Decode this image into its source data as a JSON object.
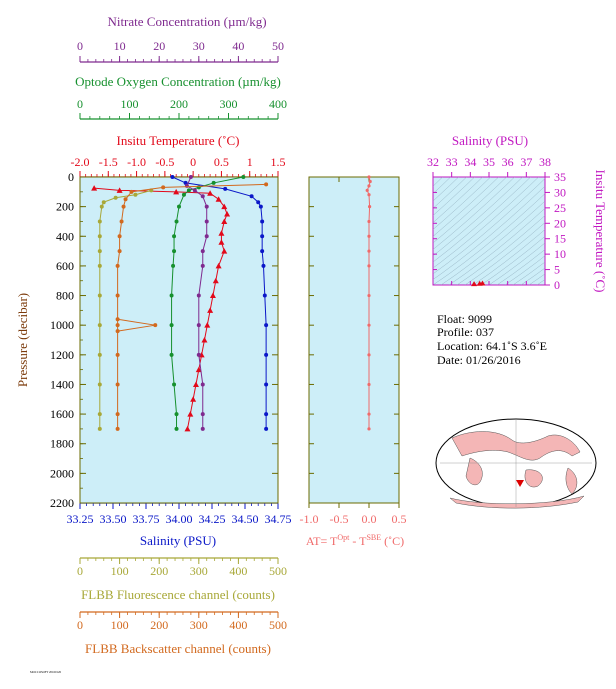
{
  "colors": {
    "nitrate": "#7f2a8f",
    "oxygen": "#16902e",
    "temperature": "#e2091a",
    "salinity": "#0a17c8",
    "fluorescence": "#a8a838",
    "backscatter": "#d2691e",
    "delta_t": "#f06a6a",
    "ts_axis": "#c117c1",
    "plot_bg": "#cdeef8",
    "plot_border": "#6b6b00"
  },
  "text": {
    "nitrate_label": "Nitrate Concentration (µm/kg)",
    "oxygen_label": "Optode Oxygen Concentration (µm/kg)",
    "temp_label": "Insitu Temperature (˚C)",
    "pressure_label": "Pressure (decibar)",
    "salinity_label": "Salinity (PSU)",
    "fluor_label": "FLBB Fluorescence channel (counts)",
    "back_label": "FLBB Backscatter channel (counts)",
    "dt_label_main": "AT= T",
    "dt_label_sup1": "Opt",
    "dt_label_mid": " - T",
    "dt_label_sup2": "SBE",
    "dt_label_end": " (˚C)",
    "ts_top_label": "Salinity (PSU)",
    "ts_right_label": "Insitu Temperature (˚C)",
    "info_float": "Float:  9099",
    "info_profile": "Profile:  037",
    "info_location": "Location:  64.1˚S   3.6˚E",
    "info_date": "Date:  01/26/2016",
    "footer_tiny": "MOCCOSOFT 20160126"
  },
  "chart_data": [
    {
      "type": "line",
      "name": "profile-plot",
      "ylabel": "Pressure (decibar)",
      "y_reversed": true,
      "ylim": [
        0,
        2200
      ],
      "yticks": [
        0,
        200,
        400,
        600,
        800,
        1000,
        1200,
        1400,
        1600,
        1800,
        2000,
        2200
      ],
      "axes": {
        "nitrate": {
          "label": "Nitrate Concentration (µm/kg)",
          "lim": [
            0,
            50
          ],
          "ticks": [
            0,
            10,
            20,
            30,
            40,
            50
          ]
        },
        "oxygen": {
          "label": "Optode Oxygen Concentration (µm/kg)",
          "lim": [
            0,
            400
          ],
          "ticks": [
            0,
            100,
            200,
            300,
            400
          ]
        },
        "temperature": {
          "label": "Insitu Temperature (˚C)",
          "lim": [
            -2.0,
            1.5
          ],
          "ticks": [
            "-2.0",
            "-1.5",
            "-1.0",
            "-0.5",
            "0",
            "0.5",
            "1",
            "1.5"
          ]
        },
        "salinity": {
          "label": "Salinity (PSU)",
          "lim": [
            33.25,
            34.75
          ],
          "ticks": [
            "33.25",
            "33.50",
            "33.75",
            "34.00",
            "34.25",
            "34.50",
            "34.75"
          ]
        },
        "fluorescence": {
          "label": "FLBB Fluorescence channel (counts)",
          "lim": [
            0,
            500
          ],
          "ticks": [
            0,
            100,
            200,
            300,
            400,
            500
          ]
        },
        "backscatter": {
          "label": "FLBB Backscatter channel (counts)",
          "lim": [
            0,
            500
          ],
          "ticks": [
            0,
            100,
            200,
            300,
            400,
            500
          ]
        }
      },
      "series": [
        {
          "key": "temperature",
          "marker": "triangle",
          "points": [
            [
              -1.75,
              75
            ],
            [
              -1.3,
              90
            ],
            [
              -0.3,
              100
            ],
            [
              0.3,
              110
            ],
            [
              0.45,
              150
            ],
            [
              0.55,
              200
            ],
            [
              0.6,
              250
            ],
            [
              0.55,
              300
            ],
            [
              0.5,
              380
            ],
            [
              0.5,
              440
            ],
            [
              0.55,
              500
            ],
            [
              0.45,
              600
            ],
            [
              0.4,
              700
            ],
            [
              0.35,
              800
            ],
            [
              0.3,
              900
            ],
            [
              0.25,
              1000
            ],
            [
              0.2,
              1100
            ],
            [
              0.15,
              1200
            ],
            [
              0.1,
              1300
            ],
            [
              0.05,
              1400
            ],
            [
              0.0,
              1500
            ],
            [
              -0.05,
              1600
            ],
            [
              -0.1,
              1700
            ]
          ]
        },
        {
          "key": "salinity",
          "marker": "circle",
          "points": [
            [
              33.95,
              0
            ],
            [
              34.05,
              40
            ],
            [
              34.35,
              80
            ],
            [
              34.55,
              130
            ],
            [
              34.6,
              170
            ],
            [
              34.62,
              200
            ],
            [
              34.63,
              300
            ],
            [
              34.63,
              400
            ],
            [
              34.63,
              500
            ],
            [
              34.64,
              600
            ],
            [
              34.65,
              800
            ],
            [
              34.66,
              1000
            ],
            [
              34.66,
              1200
            ],
            [
              34.66,
              1400
            ],
            [
              34.66,
              1600
            ],
            [
              34.66,
              1700
            ]
          ]
        },
        {
          "key": "oxygen",
          "marker": "circle",
          "points": [
            [
              330,
              0
            ],
            [
              270,
              40
            ],
            [
              240,
              70
            ],
            [
              220,
              90
            ],
            [
              210,
              120
            ],
            [
              200,
              200
            ],
            [
              195,
              300
            ],
            [
              190,
              400
            ],
            [
              190,
              500
            ],
            [
              188,
              600
            ],
            [
              185,
              800
            ],
            [
              185,
              1000
            ],
            [
              185,
              1200
            ],
            [
              190,
              1400
            ],
            [
              195,
              1600
            ],
            [
              195,
              1700
            ]
          ]
        },
        {
          "key": "nitrate",
          "marker": "circle",
          "points": [
            [
              28,
              0
            ],
            [
              27,
              60
            ],
            [
              29,
              90
            ],
            [
              31,
              130
            ],
            [
              32,
              200
            ],
            [
              32,
              300
            ],
            [
              32,
              400
            ],
            [
              31,
              500
            ],
            [
              31,
              600
            ],
            [
              30,
              800
            ],
            [
              30,
              1000
            ],
            [
              30,
              1200
            ],
            [
              31,
              1400
            ],
            [
              31,
              1600
            ],
            [
              31,
              1700
            ]
          ]
        },
        {
          "key": "fluorescence",
          "marker": "circle",
          "points": [
            [
              180,
              90
            ],
            [
              140,
              120
            ],
            [
              90,
              140
            ],
            [
              60,
              170
            ],
            [
              55,
              200
            ],
            [
              50,
              300
            ],
            [
              50,
              400
            ],
            [
              50,
              500
            ],
            [
              50,
              600
            ],
            [
              50,
              800
            ],
            [
              50,
              1000
            ],
            [
              50,
              1200
            ],
            [
              50,
              1400
            ],
            [
              50,
              1600
            ],
            [
              50,
              1700
            ]
          ]
        },
        {
          "key": "backscatter",
          "marker": "circle",
          "points": [
            [
              470,
              50
            ],
            [
              210,
              70
            ],
            [
              130,
              100
            ],
            [
              115,
              150
            ],
            [
              110,
              200
            ],
            [
              105,
              300
            ],
            [
              100,
              400
            ],
            [
              100,
              500
            ],
            [
              95,
              600
            ],
            [
              95,
              800
            ],
            [
              95,
              1000
            ],
            [
              95,
              1200
            ],
            [
              95,
              1400
            ],
            [
              95,
              1600
            ],
            [
              95,
              1700
            ]
          ]
        },
        {
          "key": "backscatter",
          "marker": "circle",
          "points": [
            [
              95,
              960
            ],
            [
              190,
              1000
            ],
            [
              95,
              1040
            ]
          ]
        }
      ]
    },
    {
      "type": "line",
      "name": "delta-t-plot",
      "xlabel": "AT= T^Opt - T^SBE (˚C)",
      "xlim": [
        -1.0,
        0.5
      ],
      "xticks": [
        "-1.0",
        "-0.5",
        "0.0",
        "0.5"
      ],
      "ylim": [
        0,
        2200
      ],
      "series": [
        {
          "key": "delta_t",
          "marker": "circle",
          "points": [
            [
              0.0,
              0
            ],
            [
              0.02,
              30
            ],
            [
              0.0,
              60
            ],
            [
              -0.03,
              90
            ],
            [
              0.0,
              120
            ],
            [
              0.01,
              200
            ],
            [
              0.0,
              300
            ],
            [
              0.0,
              400
            ],
            [
              0.0,
              500
            ],
            [
              0.0,
              600
            ],
            [
              0.0,
              800
            ],
            [
              0.0,
              1000
            ],
            [
              0.0,
              1200
            ],
            [
              0.0,
              1400
            ],
            [
              0.0,
              1600
            ],
            [
              0.0,
              1700
            ]
          ]
        }
      ]
    },
    {
      "type": "scatter",
      "name": "ts-diagram",
      "xlabel": "Salinity (PSU)",
      "ylabel": "Insitu Temperature (˚C)",
      "xlim": [
        32,
        38
      ],
      "ylim": [
        0,
        35
      ],
      "xticks": [
        32,
        33,
        34,
        35,
        36,
        37,
        38
      ],
      "yticks": [
        0,
        5,
        10,
        15,
        20,
        25,
        30,
        35
      ],
      "points": [
        [
          34.2,
          0.3
        ],
        [
          34.5,
          0.4
        ],
        [
          34.65,
          0.5
        ]
      ]
    }
  ]
}
